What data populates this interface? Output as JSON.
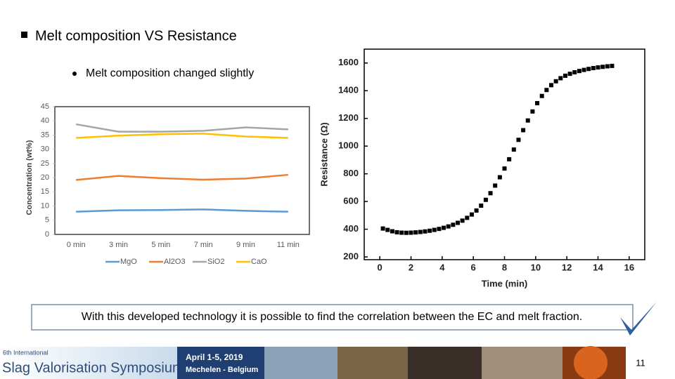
{
  "slide": {
    "title": "Melt composition VS Resistance",
    "bullet": "Melt composition changed slightly",
    "conclusion": "With this developed technology it is possible to find the correlation between the EC and melt fraction.",
    "footer": {
      "edition": "6th International",
      "event": "Slag Valorisation Symposium",
      "dates": "April 1-5, 2019",
      "place": "Mechelen - Belgium"
    },
    "page_number": "11"
  },
  "chart_data": [
    {
      "type": "line",
      "ylabel": "Concentration (wt%)",
      "categories": [
        "0 min",
        "3 min",
        "5 min",
        "7 min",
        "9 min",
        "11 min"
      ],
      "series": [
        {
          "name": "MgO",
          "color": "#5b9bd5",
          "values": [
            8.0,
            8.5,
            8.6,
            8.8,
            8.3,
            8.0
          ]
        },
        {
          "name": "Al2O3",
          "color": "#ed7d31",
          "values": [
            19.2,
            20.6,
            19.8,
            19.3,
            19.7,
            21.0
          ]
        },
        {
          "name": "SiO2",
          "color": "#a5a5a5",
          "values": [
            38.8,
            36.2,
            36.2,
            36.5,
            37.7,
            37.0
          ]
        },
        {
          "name": "CaO",
          "color": "#ffc000",
          "values": [
            34.0,
            34.8,
            35.3,
            35.5,
            34.5,
            34.0
          ]
        }
      ],
      "ylim": [
        0,
        45
      ],
      "yticks": [
        0,
        5,
        10,
        15,
        20,
        25,
        30,
        35,
        40,
        45
      ],
      "grid": false,
      "legend": "bottom"
    },
    {
      "type": "scatter",
      "xlabel": "Time (min)",
      "ylabel": "Resistance (Ω)",
      "color": "#000000",
      "marker": "square",
      "x": [
        0.2,
        0.5,
        0.8,
        1.1,
        1.4,
        1.7,
        2.0,
        2.3,
        2.6,
        2.9,
        3.2,
        3.5,
        3.8,
        4.1,
        4.4,
        4.7,
        5.0,
        5.3,
        5.6,
        5.9,
        6.2,
        6.5,
        6.8,
        7.1,
        7.4,
        7.7,
        8.0,
        8.3,
        8.6,
        8.9,
        9.2,
        9.5,
        9.8,
        10.1,
        10.4,
        10.7,
        11.0,
        11.3,
        11.6,
        11.9,
        12.2,
        12.5,
        12.8,
        13.1,
        13.4,
        13.7,
        14.0,
        14.3,
        14.6,
        14.9
      ],
      "values": [
        405,
        395,
        385,
        378,
        375,
        374,
        375,
        377,
        380,
        384,
        389,
        395,
        402,
        410,
        420,
        432,
        446,
        462,
        482,
        506,
        535,
        570,
        612,
        660,
        715,
        775,
        838,
        905,
        975,
        1045,
        1115,
        1185,
        1250,
        1310,
        1362,
        1405,
        1440,
        1468,
        1490,
        1508,
        1522,
        1533,
        1542,
        1550,
        1557,
        1563,
        1568,
        1572,
        1576,
        1579
      ],
      "xlim": [
        -1,
        17
      ],
      "xticks": [
        0,
        2,
        4,
        6,
        8,
        10,
        12,
        14,
        16
      ],
      "ylim": [
        180,
        1700
      ],
      "yticks": [
        200,
        400,
        600,
        800,
        1000,
        1200,
        1400,
        1600
      ],
      "grid": false
    }
  ]
}
